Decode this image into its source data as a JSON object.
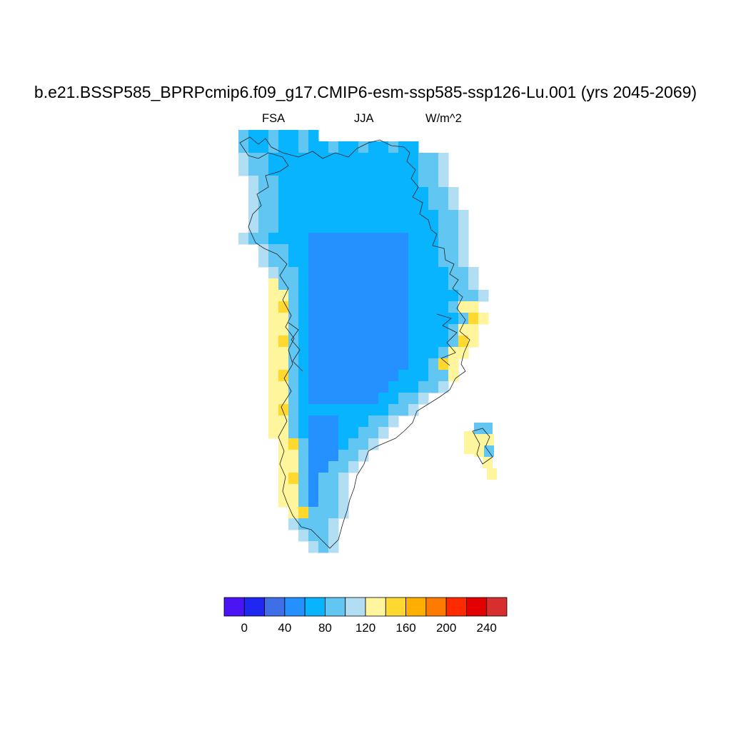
{
  "title": "b.e21.BSSP585_BPRPcmip6.f09_g17.CMIP6-esm-ssp585-ssp126-Lu.001 (yrs 2045-2069)",
  "subtitle": {
    "left": "FSA",
    "center": "JJA",
    "right": "W/m^2"
  },
  "colorbar": {
    "colors": [
      "#4a14f5",
      "#1e28f0",
      "#3f6fe6",
      "#2590ff",
      "#09b4ff",
      "#62c6f2",
      "#b2def4",
      "#fff59c",
      "#ffd830",
      "#ffaf00",
      "#ff7a00",
      "#ff2b00",
      "#e30000",
      "#d72e2e"
    ],
    "labels": [
      "0",
      "40",
      "80",
      "120",
      "160",
      "200",
      "240"
    ],
    "label_values": [
      0,
      40,
      80,
      120,
      160,
      200,
      240
    ]
  },
  "map_data": {
    "type": "gridded-field",
    "region": "Greenland",
    "variable": "FSA",
    "season": "JJA",
    "units": "W/m^2",
    "interior_value_range": [
      40,
      80
    ],
    "coastal_value_range": [
      80,
      160
    ]
  }
}
